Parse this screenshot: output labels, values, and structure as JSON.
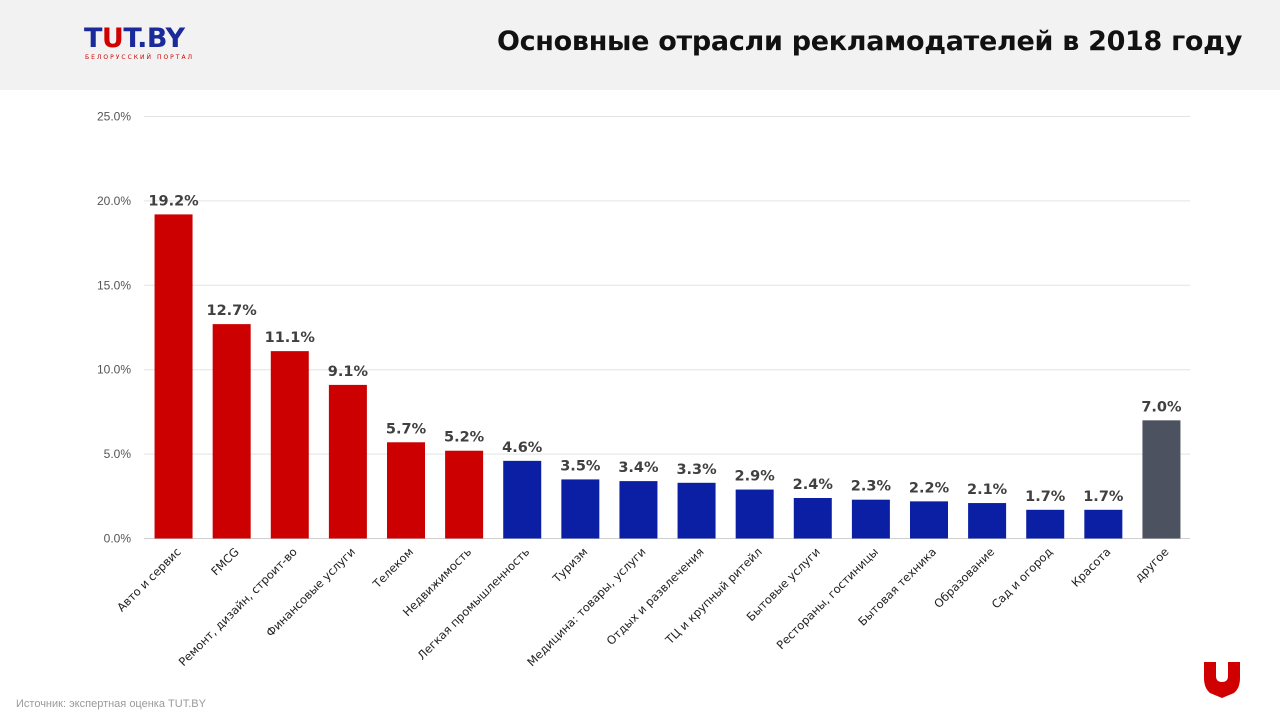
{
  "brand": {
    "logo_prefix": "T",
    "logo_letter": "U",
    "logo_suffix": "T.BY",
    "logo_tagline": "БЕЛОРУССКИЙ ПОРТАЛ"
  },
  "source_text": "Источник: экспертная оценка TUT.BY",
  "colors": {
    "red": "#cc0000",
    "blue": "#0a1fa3",
    "gray": "#4d5260",
    "grid": "#e3e3e3",
    "axis_text": "#555555",
    "label_text": "#404040"
  },
  "chart_data": {
    "type": "bar",
    "title": "Основные отрасли рекламодателей в 2018 году",
    "xlabel": "",
    "ylabel": "",
    "ylim": [
      0,
      25
    ],
    "yticks": [
      "0.0%",
      "5.0%",
      "10.0%",
      "15.0%",
      "20.0%",
      "25.0%"
    ],
    "grid": true,
    "categories": [
      "Авто и сервис",
      "FMCG",
      "Ремонт, дизайн, строит-во",
      "Финансовые услуги",
      "Телеком",
      "Недвижимость",
      "Легкая промышленность",
      "Туризм",
      "Медицина: товары, услуги",
      "Отдых и развлечения",
      "ТЦ и крупный ритейл",
      "Бытовые услуги",
      "Рестораны, гостиницы",
      "Бытовая техника",
      "Образование",
      "Сад и огород",
      "Красота",
      "другое"
    ],
    "values": [
      19.2,
      12.7,
      11.1,
      9.1,
      5.7,
      5.2,
      4.6,
      3.5,
      3.4,
      3.3,
      2.9,
      2.4,
      2.3,
      2.2,
      2.1,
      1.7,
      1.7,
      7.0
    ],
    "labels": [
      "19.2%",
      "12.7%",
      "11.1%",
      "9.1%",
      "5.7%",
      "5.2%",
      "4.6%",
      "3.5%",
      "3.4%",
      "3.3%",
      "2.9%",
      "2.4%",
      "2.3%",
      "2.2%",
      "2.1%",
      "1.7%",
      "1.7%",
      "7.0%"
    ],
    "bar_colors": [
      "red",
      "red",
      "red",
      "red",
      "red",
      "red",
      "blue",
      "blue",
      "blue",
      "blue",
      "blue",
      "blue",
      "blue",
      "blue",
      "blue",
      "blue",
      "blue",
      "gray"
    ]
  }
}
